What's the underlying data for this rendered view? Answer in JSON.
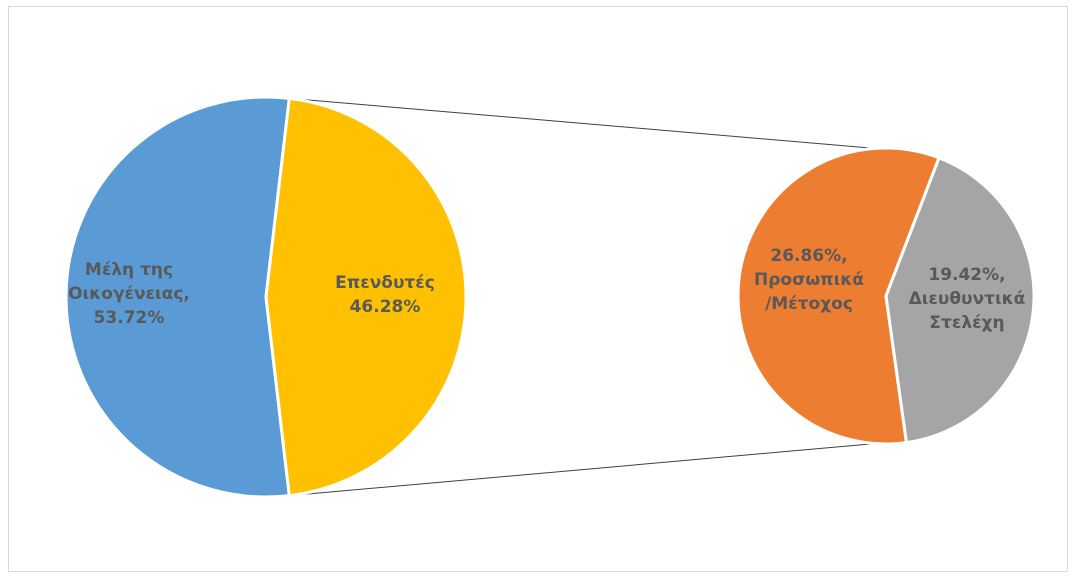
{
  "chart_data": {
    "type": "pie-of-pie",
    "title": "",
    "main_pie": {
      "slices": [
        {
          "id": "family",
          "label_lines": [
            "Μέλη της",
            "Οικογένειας,",
            "53.72%"
          ],
          "value": 53.72,
          "color": "#5b9bd5"
        },
        {
          "id": "investors",
          "label_lines": [
            "Επενδυτές",
            "46.28%"
          ],
          "value": 46.28,
          "color": "#ffc000"
        }
      ]
    },
    "secondary_pie": {
      "source_slice": "investors",
      "slices": [
        {
          "id": "personal",
          "label_lines": [
            "26.86%,",
            "Προσωπικά",
            "/Μέτοχος"
          ],
          "value": 26.86,
          "color": "#ed7d31"
        },
        {
          "id": "executives",
          "label_lines": [
            "19.42%,",
            "Διευθυντικά",
            "Στελέχη"
          ],
          "value": 19.42,
          "color": "#a5a5a5"
        }
      ]
    },
    "connector_color": "#404040",
    "legend": "none",
    "grid": false
  }
}
